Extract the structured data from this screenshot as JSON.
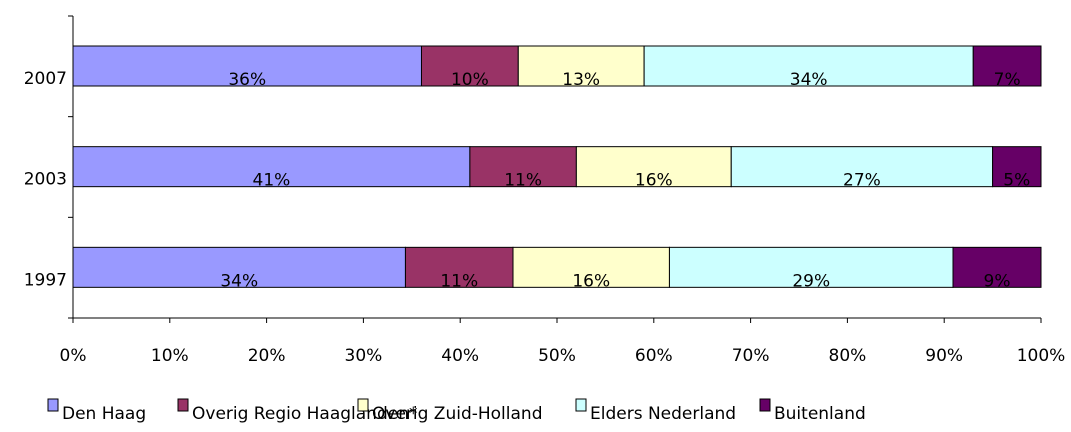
{
  "chart_data": {
    "type": "bar",
    "orientation": "horizontal",
    "stack": "percent",
    "categories": [
      "1997",
      "2003",
      "2007"
    ],
    "series": [
      {
        "name": "Den Haag",
        "color": "#9999ff",
        "values": [
          34,
          41,
          36
        ],
        "value_labels": [
          "34%",
          "41%",
          "36%"
        ]
      },
      {
        "name": "Overig Regio Haaglanden*",
        "color": "#993366",
        "values": [
          11,
          11,
          10
        ],
        "value_labels": [
          "11%",
          "11%",
          "10%"
        ]
      },
      {
        "name": "Overig Zuid-Holland",
        "color": "#ffffcc",
        "values": [
          16,
          16,
          13
        ],
        "value_labels": [
          "16%",
          "16%",
          "13%"
        ]
      },
      {
        "name": "Elders Nederland",
        "color": "#ccffff",
        "values": [
          29,
          27,
          34
        ],
        "value_labels": [
          "29%",
          "27%",
          "34%"
        ]
      },
      {
        "name": "Buitenland",
        "color": "#660066",
        "values": [
          9,
          5,
          7
        ],
        "value_labels": [
          "9%",
          "5%",
          "7%"
        ]
      }
    ],
    "xlim": [
      0,
      100
    ],
    "xticks": [
      {
        "value": 0,
        "label": "0%"
      },
      {
        "value": 10,
        "label": "10%"
      },
      {
        "value": 20,
        "label": "20%"
      },
      {
        "value": 30,
        "label": "30%"
      },
      {
        "value": 40,
        "label": "40%"
      },
      {
        "value": 50,
        "label": "50%"
      },
      {
        "value": 60,
        "label": "60%"
      },
      {
        "value": 70,
        "label": "70%"
      },
      {
        "value": 80,
        "label": "80%"
      },
      {
        "value": 90,
        "label": "90%"
      },
      {
        "value": 100,
        "label": "100%"
      }
    ],
    "legend": "bottom"
  }
}
